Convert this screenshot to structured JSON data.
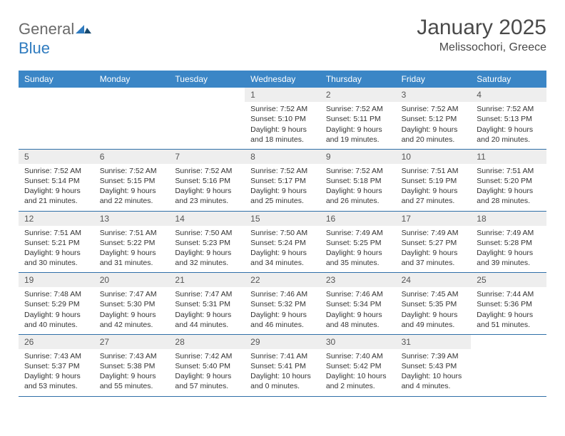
{
  "brand": {
    "name_a": "General",
    "name_b": "Blue"
  },
  "title": "January 2025",
  "location": "Melissochori, Greece",
  "colors": {
    "header_bg": "#3b86c6",
    "header_text": "#ffffff",
    "daynum_bg": "#eeeeee",
    "rule": "#2f6fa8",
    "text": "#333333"
  },
  "dow": [
    "Sunday",
    "Monday",
    "Tuesday",
    "Wednesday",
    "Thursday",
    "Friday",
    "Saturday"
  ],
  "weeks": [
    [
      {
        "n": "",
        "sr": "",
        "ss": "",
        "dl": ""
      },
      {
        "n": "",
        "sr": "",
        "ss": "",
        "dl": ""
      },
      {
        "n": "",
        "sr": "",
        "ss": "",
        "dl": ""
      },
      {
        "n": "1",
        "sr": "Sunrise: 7:52 AM",
        "ss": "Sunset: 5:10 PM",
        "dl": "Daylight: 9 hours and 18 minutes."
      },
      {
        "n": "2",
        "sr": "Sunrise: 7:52 AM",
        "ss": "Sunset: 5:11 PM",
        "dl": "Daylight: 9 hours and 19 minutes."
      },
      {
        "n": "3",
        "sr": "Sunrise: 7:52 AM",
        "ss": "Sunset: 5:12 PM",
        "dl": "Daylight: 9 hours and 20 minutes."
      },
      {
        "n": "4",
        "sr": "Sunrise: 7:52 AM",
        "ss": "Sunset: 5:13 PM",
        "dl": "Daylight: 9 hours and 20 minutes."
      }
    ],
    [
      {
        "n": "5",
        "sr": "Sunrise: 7:52 AM",
        "ss": "Sunset: 5:14 PM",
        "dl": "Daylight: 9 hours and 21 minutes."
      },
      {
        "n": "6",
        "sr": "Sunrise: 7:52 AM",
        "ss": "Sunset: 5:15 PM",
        "dl": "Daylight: 9 hours and 22 minutes."
      },
      {
        "n": "7",
        "sr": "Sunrise: 7:52 AM",
        "ss": "Sunset: 5:16 PM",
        "dl": "Daylight: 9 hours and 23 minutes."
      },
      {
        "n": "8",
        "sr": "Sunrise: 7:52 AM",
        "ss": "Sunset: 5:17 PM",
        "dl": "Daylight: 9 hours and 25 minutes."
      },
      {
        "n": "9",
        "sr": "Sunrise: 7:52 AM",
        "ss": "Sunset: 5:18 PM",
        "dl": "Daylight: 9 hours and 26 minutes."
      },
      {
        "n": "10",
        "sr": "Sunrise: 7:51 AM",
        "ss": "Sunset: 5:19 PM",
        "dl": "Daylight: 9 hours and 27 minutes."
      },
      {
        "n": "11",
        "sr": "Sunrise: 7:51 AM",
        "ss": "Sunset: 5:20 PM",
        "dl": "Daylight: 9 hours and 28 minutes."
      }
    ],
    [
      {
        "n": "12",
        "sr": "Sunrise: 7:51 AM",
        "ss": "Sunset: 5:21 PM",
        "dl": "Daylight: 9 hours and 30 minutes."
      },
      {
        "n": "13",
        "sr": "Sunrise: 7:51 AM",
        "ss": "Sunset: 5:22 PM",
        "dl": "Daylight: 9 hours and 31 minutes."
      },
      {
        "n": "14",
        "sr": "Sunrise: 7:50 AM",
        "ss": "Sunset: 5:23 PM",
        "dl": "Daylight: 9 hours and 32 minutes."
      },
      {
        "n": "15",
        "sr": "Sunrise: 7:50 AM",
        "ss": "Sunset: 5:24 PM",
        "dl": "Daylight: 9 hours and 34 minutes."
      },
      {
        "n": "16",
        "sr": "Sunrise: 7:49 AM",
        "ss": "Sunset: 5:25 PM",
        "dl": "Daylight: 9 hours and 35 minutes."
      },
      {
        "n": "17",
        "sr": "Sunrise: 7:49 AM",
        "ss": "Sunset: 5:27 PM",
        "dl": "Daylight: 9 hours and 37 minutes."
      },
      {
        "n": "18",
        "sr": "Sunrise: 7:49 AM",
        "ss": "Sunset: 5:28 PM",
        "dl": "Daylight: 9 hours and 39 minutes."
      }
    ],
    [
      {
        "n": "19",
        "sr": "Sunrise: 7:48 AM",
        "ss": "Sunset: 5:29 PM",
        "dl": "Daylight: 9 hours and 40 minutes."
      },
      {
        "n": "20",
        "sr": "Sunrise: 7:47 AM",
        "ss": "Sunset: 5:30 PM",
        "dl": "Daylight: 9 hours and 42 minutes."
      },
      {
        "n": "21",
        "sr": "Sunrise: 7:47 AM",
        "ss": "Sunset: 5:31 PM",
        "dl": "Daylight: 9 hours and 44 minutes."
      },
      {
        "n": "22",
        "sr": "Sunrise: 7:46 AM",
        "ss": "Sunset: 5:32 PM",
        "dl": "Daylight: 9 hours and 46 minutes."
      },
      {
        "n": "23",
        "sr": "Sunrise: 7:46 AM",
        "ss": "Sunset: 5:34 PM",
        "dl": "Daylight: 9 hours and 48 minutes."
      },
      {
        "n": "24",
        "sr": "Sunrise: 7:45 AM",
        "ss": "Sunset: 5:35 PM",
        "dl": "Daylight: 9 hours and 49 minutes."
      },
      {
        "n": "25",
        "sr": "Sunrise: 7:44 AM",
        "ss": "Sunset: 5:36 PM",
        "dl": "Daylight: 9 hours and 51 minutes."
      }
    ],
    [
      {
        "n": "26",
        "sr": "Sunrise: 7:43 AM",
        "ss": "Sunset: 5:37 PM",
        "dl": "Daylight: 9 hours and 53 minutes."
      },
      {
        "n": "27",
        "sr": "Sunrise: 7:43 AM",
        "ss": "Sunset: 5:38 PM",
        "dl": "Daylight: 9 hours and 55 minutes."
      },
      {
        "n": "28",
        "sr": "Sunrise: 7:42 AM",
        "ss": "Sunset: 5:40 PM",
        "dl": "Daylight: 9 hours and 57 minutes."
      },
      {
        "n": "29",
        "sr": "Sunrise: 7:41 AM",
        "ss": "Sunset: 5:41 PM",
        "dl": "Daylight: 10 hours and 0 minutes."
      },
      {
        "n": "30",
        "sr": "Sunrise: 7:40 AM",
        "ss": "Sunset: 5:42 PM",
        "dl": "Daylight: 10 hours and 2 minutes."
      },
      {
        "n": "31",
        "sr": "Sunrise: 7:39 AM",
        "ss": "Sunset: 5:43 PM",
        "dl": "Daylight: 10 hours and 4 minutes."
      },
      {
        "n": "",
        "sr": "",
        "ss": "",
        "dl": ""
      }
    ]
  ]
}
